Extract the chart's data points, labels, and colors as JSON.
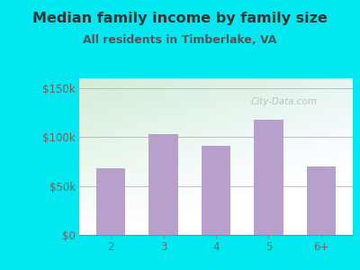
{
  "title": "Median family income by family size",
  "subtitle": "All residents in Timberlake, VA",
  "categories": [
    "2",
    "3",
    "4",
    "5",
    "6+"
  ],
  "values": [
    68000,
    103000,
    91000,
    118000,
    70000
  ],
  "bar_color": "#b8a0cc",
  "background_outer": "#00e8f0",
  "background_inner_topleft": "#c8e8cc",
  "background_inner_topright": "#e8f4f8",
  "background_inner_bottom": "#f0faf0",
  "title_color": "#333333",
  "subtitle_color": "#555555",
  "axis_label_color": "#666666",
  "yticks": [
    0,
    50000,
    100000,
    150000
  ],
  "ytick_labels": [
    "$0",
    "$50k",
    "$100k",
    "$150k"
  ],
  "ylim": [
    0,
    160000
  ],
  "title_fontsize": 11.5,
  "subtitle_fontsize": 9,
  "tick_fontsize": 8.5,
  "watermark": "City-Data.com"
}
